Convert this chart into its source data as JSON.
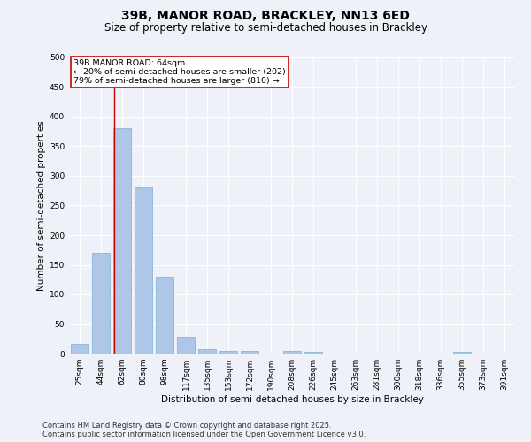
{
  "title_line1": "39B, MANOR ROAD, BRACKLEY, NN13 6ED",
  "title_line2": "Size of property relative to semi-detached houses in Brackley",
  "xlabel": "Distribution of semi-detached houses by size in Brackley",
  "ylabel": "Number of semi-detached properties",
  "categories": [
    "25sqm",
    "44sqm",
    "62sqm",
    "80sqm",
    "98sqm",
    "117sqm",
    "135sqm",
    "153sqm",
    "172sqm",
    "190sqm",
    "208sqm",
    "226sqm",
    "245sqm",
    "263sqm",
    "281sqm",
    "300sqm",
    "318sqm",
    "336sqm",
    "355sqm",
    "373sqm",
    "391sqm"
  ],
  "values": [
    16,
    170,
    380,
    280,
    130,
    28,
    8,
    5,
    5,
    0,
    5,
    3,
    0,
    0,
    0,
    0,
    0,
    0,
    3,
    0,
    0
  ],
  "bar_color": "#aec6e8",
  "bar_edge_color": "#7aafd4",
  "vline_x_index": 2,
  "vline_color": "#cc0000",
  "annotation_title": "39B MANOR ROAD: 64sqm",
  "annotation_line1": "← 20% of semi-detached houses are smaller (202)",
  "annotation_line2": "79% of semi-detached houses are larger (810) →",
  "annotation_box_color": "#ffffff",
  "annotation_box_edge_color": "#cc0000",
  "ylim": [
    0,
    500
  ],
  "yticks": [
    0,
    50,
    100,
    150,
    200,
    250,
    300,
    350,
    400,
    450,
    500
  ],
  "footnote_line1": "Contains HM Land Registry data © Crown copyright and database right 2025.",
  "footnote_line2": "Contains public sector information licensed under the Open Government Licence v3.0.",
  "bg_color": "#eef2f8",
  "plot_bg_color": "#eef2f8",
  "grid_color": "#ffffff",
  "title_fontsize": 10,
  "subtitle_fontsize": 8.5,
  "axis_label_fontsize": 7.5,
  "tick_fontsize": 6.5,
  "annotation_fontsize": 6.8,
  "footnote_fontsize": 6.0
}
